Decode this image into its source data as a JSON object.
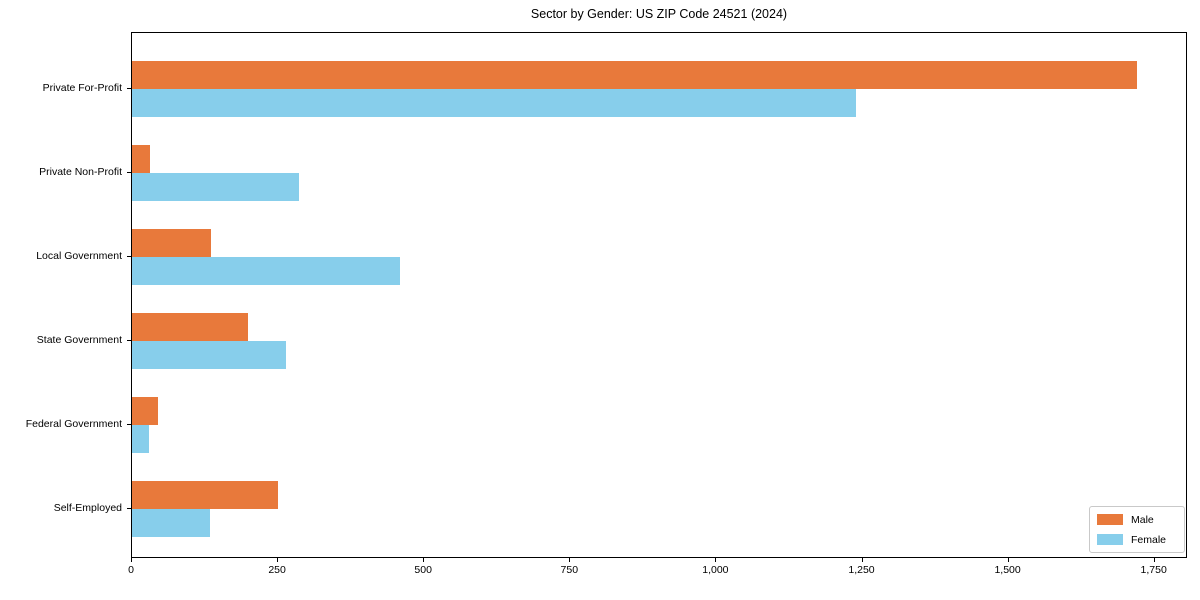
{
  "chart_data": {
    "type": "bar",
    "orientation": "horizontal",
    "title": "Sector by Gender: US ZIP Code 24521 (2024)",
    "categories": [
      "Private For-Profit",
      "Private Non-Profit",
      "Local Government",
      "State Government",
      "Federal Government",
      "Self-Employed"
    ],
    "series": [
      {
        "name": "Male",
        "color": "#E8793B",
        "values": [
          1720,
          31,
          135,
          199,
          45,
          250
        ]
      },
      {
        "name": "Female",
        "color": "#87CEEB",
        "values": [
          1239,
          285,
          459,
          264,
          29,
          134
        ]
      }
    ],
    "xlabel": "",
    "ylabel": "",
    "xlim": [
      0,
      1807
    ],
    "xticks": [
      0,
      250,
      500,
      750,
      1000,
      1250,
      1500,
      1750
    ],
    "xtick_labels": [
      "0",
      "250",
      "500",
      "750",
      "1,000",
      "1,250",
      "1,500",
      "1,750"
    ],
    "grid": false,
    "legend_position": "lower-right",
    "legend_entries": [
      "Male",
      "Female"
    ]
  },
  "colors": {
    "male": "#E8793B",
    "female": "#87CEEB",
    "axis": "#000000",
    "legend_border": "#c9c9c9",
    "background": "#ffffff"
  }
}
